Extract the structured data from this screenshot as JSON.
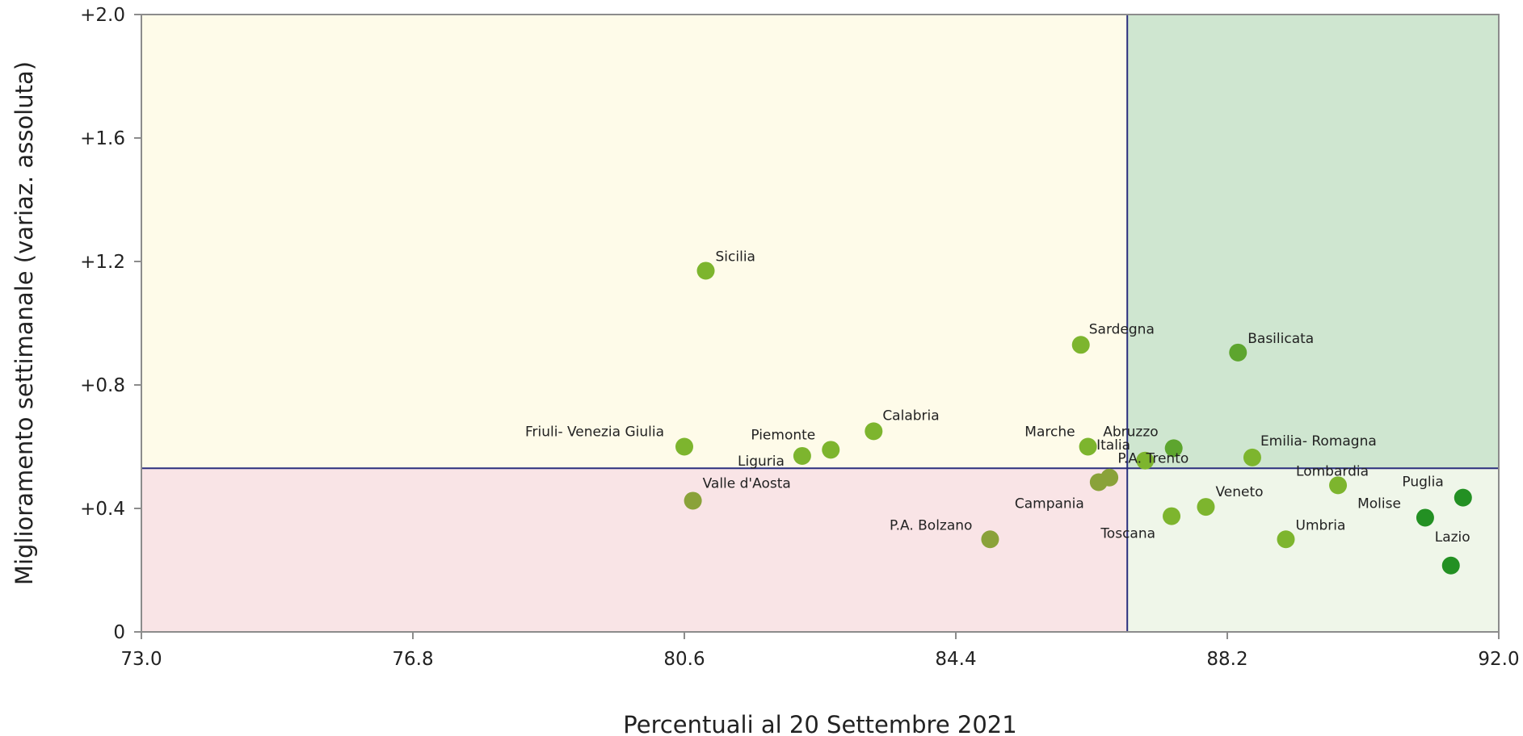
{
  "chart_data": {
    "type": "scatter",
    "xlabel": "Percentuali al 20 Settembre 2021",
    "ylabel": "Miglioramento settimanale (variaz. assoluta)",
    "xlim": [
      73.0,
      92.0
    ],
    "ylim": [
      0,
      2.0
    ],
    "x_ticks": [
      "73.0",
      "76.8",
      "80.6",
      "84.4",
      "88.2",
      "92.0"
    ],
    "y_ticks": [
      "0",
      "+0.4",
      "+0.8",
      "+1.2",
      "+1.6",
      "+2.0"
    ],
    "reference_x": 86.8,
    "reference_y": 0.53,
    "quadrant_colors": {
      "top_left": "#fefbe9",
      "top_right": "#cfe6d0",
      "bottom_left": "#f9e4e6",
      "bottom_right": "#eff6e9"
    },
    "reference_line_color": "#2b2f7e",
    "grid": false,
    "points": [
      {
        "label": "Sicilia",
        "x": 80.9,
        "y": 1.17,
        "color": "#7db52e"
      },
      {
        "label": "Sardegna",
        "x": 86.15,
        "y": 0.93,
        "color": "#7db52e"
      },
      {
        "label": "Basilicata",
        "x": 88.35,
        "y": 0.905,
        "color": "#5da52e"
      },
      {
        "label": "Friuli- Venezia Giulia",
        "x": 80.6,
        "y": 0.6,
        "color": "#7db52e"
      },
      {
        "label": "Piemonte",
        "x": 82.65,
        "y": 0.59,
        "color": "#7db52e"
      },
      {
        "label": "Liguria",
        "x": 82.25,
        "y": 0.57,
        "color": "#7db52e"
      },
      {
        "label": "Calabria",
        "x": 83.25,
        "y": 0.65,
        "color": "#7db52e"
      },
      {
        "label": "Marche",
        "x": 86.25,
        "y": 0.6,
        "color": "#7db52e"
      },
      {
        "label": "Abruzzo",
        "x": 87.45,
        "y": 0.595,
        "color": "#5da52e"
      },
      {
        "label": "Italia",
        "x": 86.55,
        "y": 0.5,
        "color": "#8aa23a"
      },
      {
        "label": "P.A. Trento",
        "x": 87.05,
        "y": 0.555,
        "color": "#7db52e"
      },
      {
        "label": "Emilia- Romagna",
        "x": 88.55,
        "y": 0.565,
        "color": "#7db52e"
      },
      {
        "label": "Valle d'Aosta",
        "x": 80.72,
        "y": 0.425,
        "color": "#8aa23a"
      },
      {
        "label": "Campania",
        "x": 86.4,
        "y": 0.485,
        "color": "#8aa23a"
      },
      {
        "label": "P.A. Bolzano",
        "x": 84.88,
        "y": 0.3,
        "color": "#8aa23a"
      },
      {
        "label": "Toscana",
        "x": 87.42,
        "y": 0.375,
        "color": "#7db52e"
      },
      {
        "label": "Veneto",
        "x": 87.9,
        "y": 0.405,
        "color": "#7db52e"
      },
      {
        "label": "Lombardia",
        "x": 89.75,
        "y": 0.475,
        "color": "#7db52e"
      },
      {
        "label": "Umbria",
        "x": 89.02,
        "y": 0.3,
        "color": "#7db52e"
      },
      {
        "label": "Puglia",
        "x": 91.5,
        "y": 0.435,
        "color": "#239023"
      },
      {
        "label": "Molise",
        "x": 90.97,
        "y": 0.37,
        "color": "#239023"
      },
      {
        "label": "Lazio",
        "x": 91.33,
        "y": 0.215,
        "color": "#239023"
      }
    ]
  }
}
